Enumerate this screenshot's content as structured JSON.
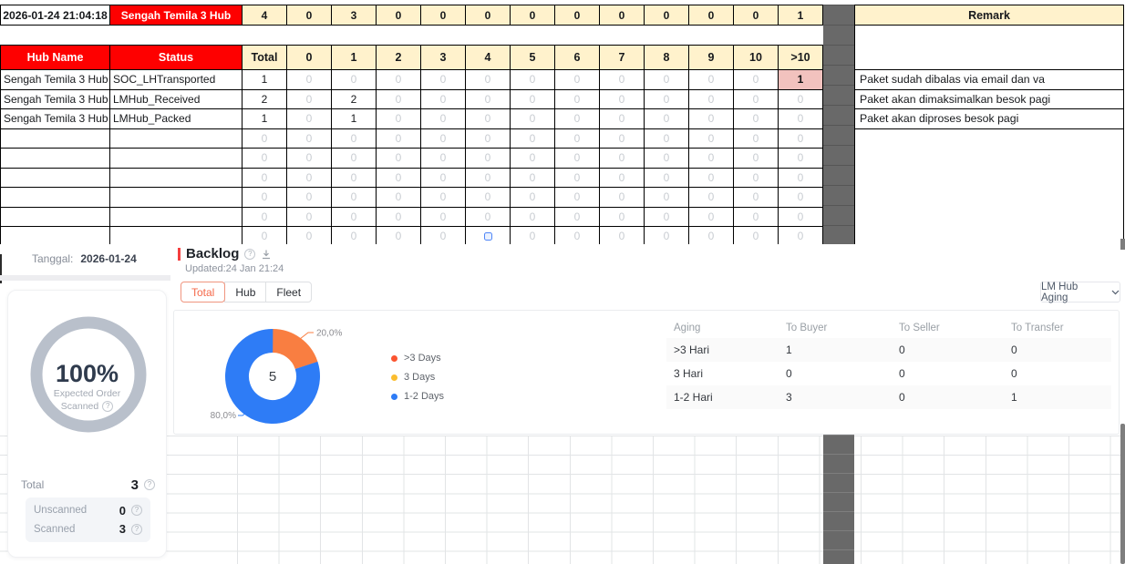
{
  "chart_data": {
    "type": "pie",
    "title": "Backlog",
    "center_total": "5",
    "legend_position": "right",
    "slices": [
      {
        "label": ">3 Days",
        "percent": 20,
        "pct_label": "20,0%",
        "color": "#f97e41",
        "dot": "#fb5430"
      },
      {
        "label": "3 Days",
        "percent": 0,
        "pct_label": "",
        "color": "#fbbd2f",
        "dot": "#fbbd2f"
      },
      {
        "label": "1-2 Days",
        "percent": 80,
        "pct_label": "80,0%",
        "color": "#2e7cf6",
        "dot": "#2e7cf6"
      }
    ]
  },
  "sheet": {
    "summary": {
      "timestamp": "2026-01-24 21:04:18",
      "hub_name": "Sengah Temila 3 Hub",
      "values": [
        "4",
        "0",
        "3",
        "0",
        "0",
        "0",
        "0",
        "0",
        "0",
        "0",
        "0",
        "0",
        "1"
      ]
    },
    "remark_header": "Remark",
    "remarks": [
      "Paket sudah dibalas via email dan va",
      "Paket akan dimaksimalkan besok pagi",
      "Paket akan diproses besok pagi"
    ],
    "table": {
      "col_headers": [
        "Hub Name",
        "Status",
        "Total",
        "0",
        "1",
        "2",
        "3",
        "4",
        "5",
        "6",
        "7",
        "8",
        "9",
        "10",
        ">10"
      ],
      "rows": [
        {
          "hub": "Sengah Temila 3 Hub",
          "status": "SOC_LHTransported",
          "values": [
            "1",
            "0",
            "0",
            "0",
            "0",
            "0",
            "0",
            "0",
            "0",
            "0",
            "0",
            "0",
            "1"
          ],
          "highlight_last": true
        },
        {
          "hub": "Sengah Temila 3 Hub",
          "status": "LMHub_Received",
          "values": [
            "2",
            "0",
            "2",
            "0",
            "0",
            "0",
            "0",
            "0",
            "0",
            "0",
            "0",
            "0",
            "0"
          ]
        },
        {
          "hub": "Sengah Temila 3 Hub",
          "status": "LMHub_Packed",
          "values": [
            "1",
            "0",
            "1",
            "0",
            "0",
            "0",
            "0",
            "0",
            "0",
            "0",
            "0",
            "0",
            "0"
          ]
        },
        {
          "hub": "",
          "status": "",
          "values": [
            "0",
            "0",
            "0",
            "0",
            "0",
            "0",
            "0",
            "0",
            "0",
            "0",
            "0",
            "0",
            "0"
          ]
        },
        {
          "hub": "",
          "status": "",
          "values": [
            "0",
            "0",
            "0",
            "0",
            "0",
            "0",
            "0",
            "0",
            "0",
            "0",
            "0",
            "0",
            "0"
          ]
        },
        {
          "hub": "",
          "status": "",
          "values": [
            "0",
            "0",
            "0",
            "0",
            "0",
            "0",
            "0",
            "0",
            "0",
            "0",
            "0",
            "0",
            "0"
          ]
        },
        {
          "hub": "",
          "status": "",
          "values": [
            "0",
            "0",
            "0",
            "0",
            "0",
            "0",
            "0",
            "0",
            "0",
            "0",
            "0",
            "0",
            "0"
          ]
        },
        {
          "hub": "",
          "status": "",
          "values": [
            "0",
            "0",
            "0",
            "0",
            "0",
            "0",
            "0",
            "0",
            "0",
            "0",
            "0",
            "0",
            "0"
          ]
        },
        {
          "hub": "",
          "status": "",
          "values": [
            "0",
            "0",
            "0",
            "0",
            "0",
            "",
            "0",
            "0",
            "0",
            "0",
            "0",
            "0",
            "0"
          ],
          "icon_col": 5
        }
      ]
    }
  },
  "dashboard": {
    "tanggal_label": "Tanggal:",
    "tanggal_value": "2026-01-24",
    "scan_card": {
      "percent": "100%",
      "caption_line1": "Expected Order",
      "caption_line2": "Scanned",
      "ring_color": "#b9c0cb",
      "stats": [
        {
          "label": "Total",
          "value": "3"
        },
        {
          "label": "Unscanned",
          "value": "0"
        },
        {
          "label": "Scanned",
          "value": "3"
        }
      ]
    },
    "backlog": {
      "title": "Backlog",
      "updated": "Updated:24 Jan 21:24",
      "tabs": [
        {
          "label": "Total",
          "active": true
        },
        {
          "label": "Hub",
          "active": false
        },
        {
          "label": "Fleet",
          "active": false
        }
      ],
      "dropdown_label": "LM Hub Aging"
    },
    "aging_table": {
      "headers": [
        "Aging",
        "To Buyer",
        "To Seller",
        "To Transfer"
      ],
      "rows": [
        {
          "aging": ">3 Hari",
          "to_buyer": "1",
          "to_seller": "0",
          "to_transfer": "0"
        },
        {
          "aging": "3 Hari",
          "to_buyer": "0",
          "to_seller": "0",
          "to_transfer": "0"
        },
        {
          "aging": "1-2 Hari",
          "to_buyer": "3",
          "to_seller": "0",
          "to_transfer": "1"
        }
      ]
    },
    "colors": {
      "accent_red": "#f53f3f",
      "active_tab": "#f5694a",
      "table_red": "#fe0000",
      "table_yellow": "#fff2cc",
      "highlight_pink": "#f2c2be"
    }
  }
}
